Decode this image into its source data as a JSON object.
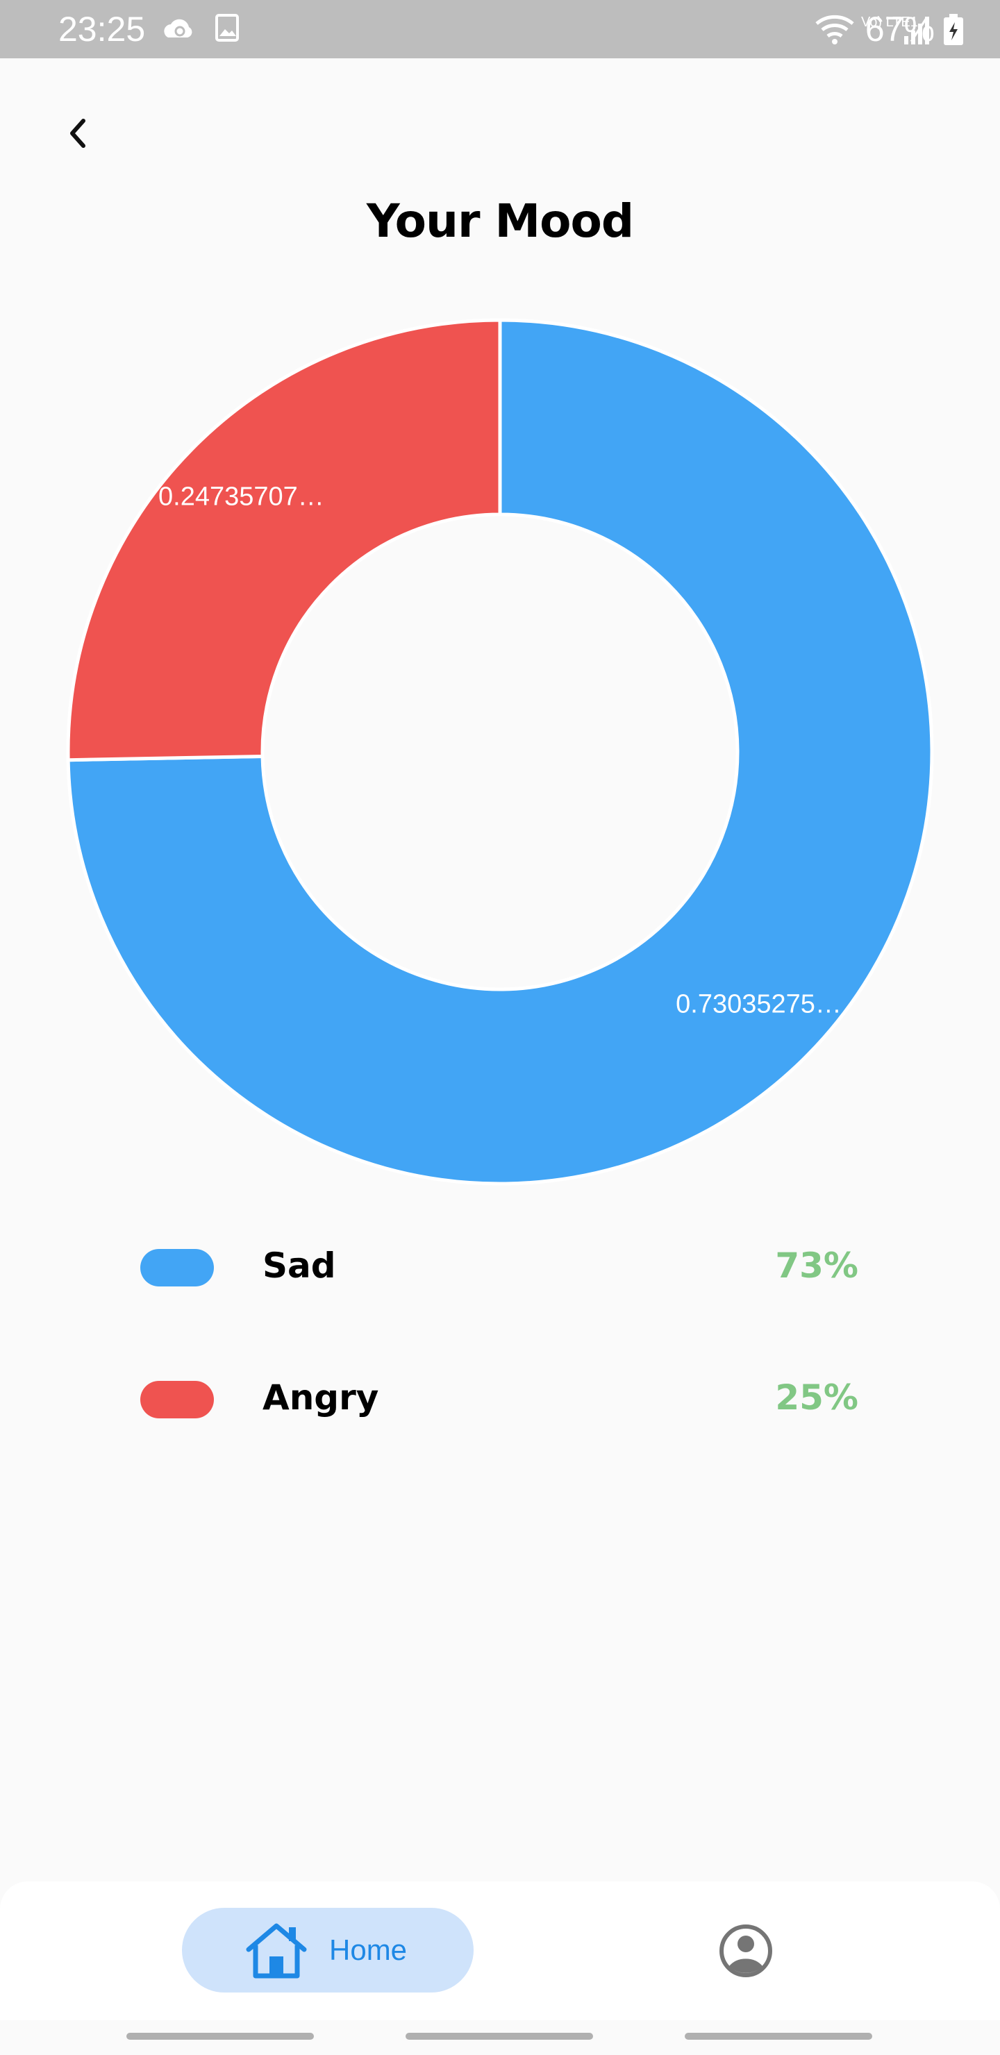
{
  "status_bar": {
    "time": "23:25",
    "network": "Vo) LTE1",
    "battery": "67%"
  },
  "header": {
    "title": "Your Mood"
  },
  "chart_data": {
    "type": "pie",
    "donut": true,
    "slices": [
      {
        "label": "Sad",
        "value": 0.73035275,
        "display": "0.73035275…",
        "color": "#42a5f5"
      },
      {
        "label": "Angry",
        "value": 0.24735707,
        "display": "0.24735707…",
        "color": "#ef5350"
      }
    ]
  },
  "legend": [
    {
      "label": "Sad",
      "percent": "73%",
      "color": "#42a5f5"
    },
    {
      "label": "Angry",
      "percent": "25%",
      "color": "#ef5350"
    }
  ],
  "colors": {
    "accent_blue": "#1e88e5",
    "nav_pill": "#cfe3fb",
    "percent_green": "#81c784",
    "inactive_icon": "#757575"
  },
  "bottom_nav": {
    "home_label": "Home",
    "home_icon": "home-icon",
    "profile_icon": "account-circle-icon"
  }
}
